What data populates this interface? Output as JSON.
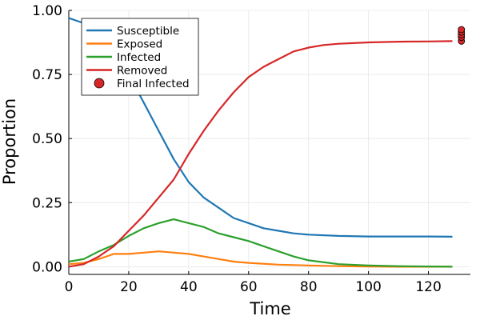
{
  "chart_data": {
    "type": "line",
    "title": "",
    "xlabel": "Time",
    "ylabel": "Proportion",
    "xlim": [
      0,
      134
    ],
    "ylim": [
      -0.03,
      1.0
    ],
    "xticks": [
      0,
      20,
      40,
      60,
      80,
      100,
      120
    ],
    "yticks": [
      0.0,
      0.25,
      0.5,
      0.75,
      1.0
    ],
    "xtick_labels": [
      "0",
      "20",
      "40",
      "60",
      "80",
      "100",
      "120"
    ],
    "ytick_labels": [
      "0.00",
      "0.25",
      "0.50",
      "0.75",
      "1.00"
    ],
    "grid": true,
    "legend_position": "top-left",
    "series": [
      {
        "name": "Susceptible",
        "color": "#1f77b4",
        "x": [
          0,
          5,
          10,
          15,
          20,
          25,
          30,
          35,
          40,
          45,
          50,
          55,
          60,
          65,
          70,
          75,
          80,
          90,
          100,
          110,
          120,
          128
        ],
        "y": [
          0.97,
          0.95,
          0.9,
          0.84,
          0.75,
          0.64,
          0.53,
          0.42,
          0.33,
          0.27,
          0.23,
          0.19,
          0.17,
          0.15,
          0.14,
          0.13,
          0.125,
          0.12,
          0.118,
          0.118,
          0.118,
          0.117
        ]
      },
      {
        "name": "Exposed",
        "color": "#ff7f0e",
        "x": [
          0,
          5,
          10,
          15,
          20,
          25,
          30,
          35,
          40,
          45,
          50,
          55,
          60,
          70,
          80,
          90,
          100,
          110,
          128
        ],
        "y": [
          0.01,
          0.015,
          0.03,
          0.05,
          0.05,
          0.055,
          0.06,
          0.055,
          0.05,
          0.04,
          0.03,
          0.02,
          0.015,
          0.008,
          0.005,
          0.002,
          0.001,
          0.0,
          0.0
        ]
      },
      {
        "name": "Infected",
        "color": "#2ca02c",
        "x": [
          0,
          5,
          10,
          15,
          20,
          25,
          30,
          35,
          40,
          45,
          50,
          55,
          60,
          65,
          70,
          75,
          80,
          90,
          100,
          110,
          128
        ],
        "y": [
          0.02,
          0.03,
          0.06,
          0.085,
          0.12,
          0.15,
          0.17,
          0.185,
          0.17,
          0.155,
          0.13,
          0.115,
          0.1,
          0.08,
          0.06,
          0.04,
          0.025,
          0.01,
          0.005,
          0.002,
          0.0
        ]
      },
      {
        "name": "Removed",
        "color": "#d62728",
        "x": [
          0,
          5,
          10,
          15,
          20,
          25,
          30,
          35,
          40,
          45,
          50,
          55,
          60,
          65,
          70,
          75,
          80,
          85,
          90,
          100,
          110,
          120,
          128
        ],
        "y": [
          0.0,
          0.01,
          0.04,
          0.08,
          0.14,
          0.2,
          0.27,
          0.34,
          0.44,
          0.53,
          0.61,
          0.68,
          0.74,
          0.78,
          0.81,
          0.84,
          0.855,
          0.865,
          0.87,
          0.875,
          0.878,
          0.879,
          0.88
        ]
      },
      {
        "name": "Final Infected",
        "type": "scatter",
        "color": "#d62728",
        "x": [
          131,
          131,
          131,
          131,
          131
        ],
        "y": [
          0.88,
          0.895,
          0.905,
          0.915,
          0.925
        ]
      }
    ]
  }
}
